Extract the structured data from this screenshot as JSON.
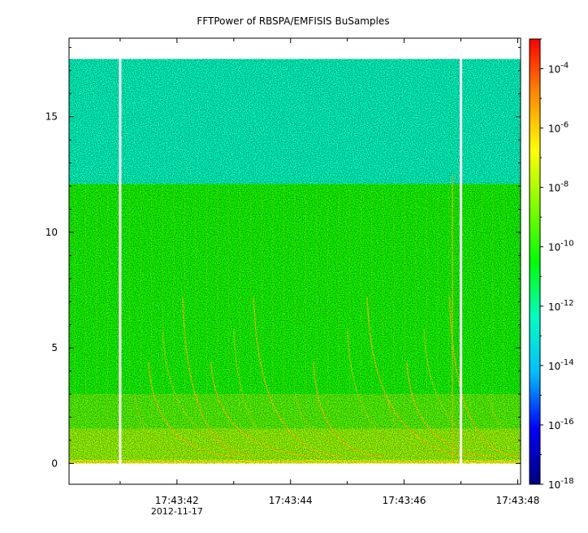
{
  "chart_data": {
    "type": "heatmap",
    "title": "FFTPower of RBSPA/EMFISIS  BuSamples",
    "xlabel": "",
    "ylabel": "",
    "x_tick_labels": [
      "17:43:42",
      "17:43:44",
      "17:43:46",
      "17:43:48"
    ],
    "x_tick_values": [
      42,
      44,
      46,
      48
    ],
    "x_sub_label": "2012-11-17",
    "x_range": [
      40.1,
      48.05
    ],
    "y_ticks": [
      0,
      5,
      10,
      15
    ],
    "ylim": [
      -0.9,
      18.4
    ],
    "data_extent_y": [
      0,
      17.5
    ],
    "data_gaps_x": [
      41.0,
      47.0
    ],
    "colorbar": {
      "scale": "log",
      "range": [
        1e-18,
        0.001
      ],
      "tick_exponents": [
        -18,
        -16,
        -14,
        -12,
        -10,
        -8,
        -6,
        -4
      ],
      "tick_labels": [
        {
          "base": "10",
          "exp": "-18"
        },
        {
          "base": "10",
          "exp": "-16"
        },
        {
          "base": "10",
          "exp": "-14"
        },
        {
          "base": "10",
          "exp": "-12"
        },
        {
          "base": "10",
          "exp": "-10"
        },
        {
          "base": "10",
          "exp": "-8"
        },
        {
          "base": "10",
          "exp": "-6"
        },
        {
          "base": "10",
          "exp": "-4"
        }
      ],
      "palette": [
        "#000080",
        "#0000ff",
        "#00bfff",
        "#00ffc0",
        "#00ff00",
        "#80ff00",
        "#ffff00",
        "#ff8c00",
        "#ff0000"
      ]
    },
    "frequency_bands": [
      {
        "y_from": 0,
        "y_to": 0.15,
        "log10_power": -7.0
      },
      {
        "y_from": 0.15,
        "y_to": 1.5,
        "log10_power": -8.3
      },
      {
        "y_from": 1.5,
        "y_to": 3.0,
        "log10_power": -9.3
      },
      {
        "y_from": 3.0,
        "y_to": 12.1,
        "log10_power": -10.2
      },
      {
        "y_from": 12.1,
        "y_to": 17.5,
        "log10_power": -12.4
      }
    ],
    "colors": {
      "strong": "#ff9900",
      "moderate": "#ffd700",
      "mid": "#b0f000",
      "background_low": "#80f010",
      "background_high": "#00f080",
      "gap": "#ffffff",
      "frame": "#000000"
    }
  }
}
